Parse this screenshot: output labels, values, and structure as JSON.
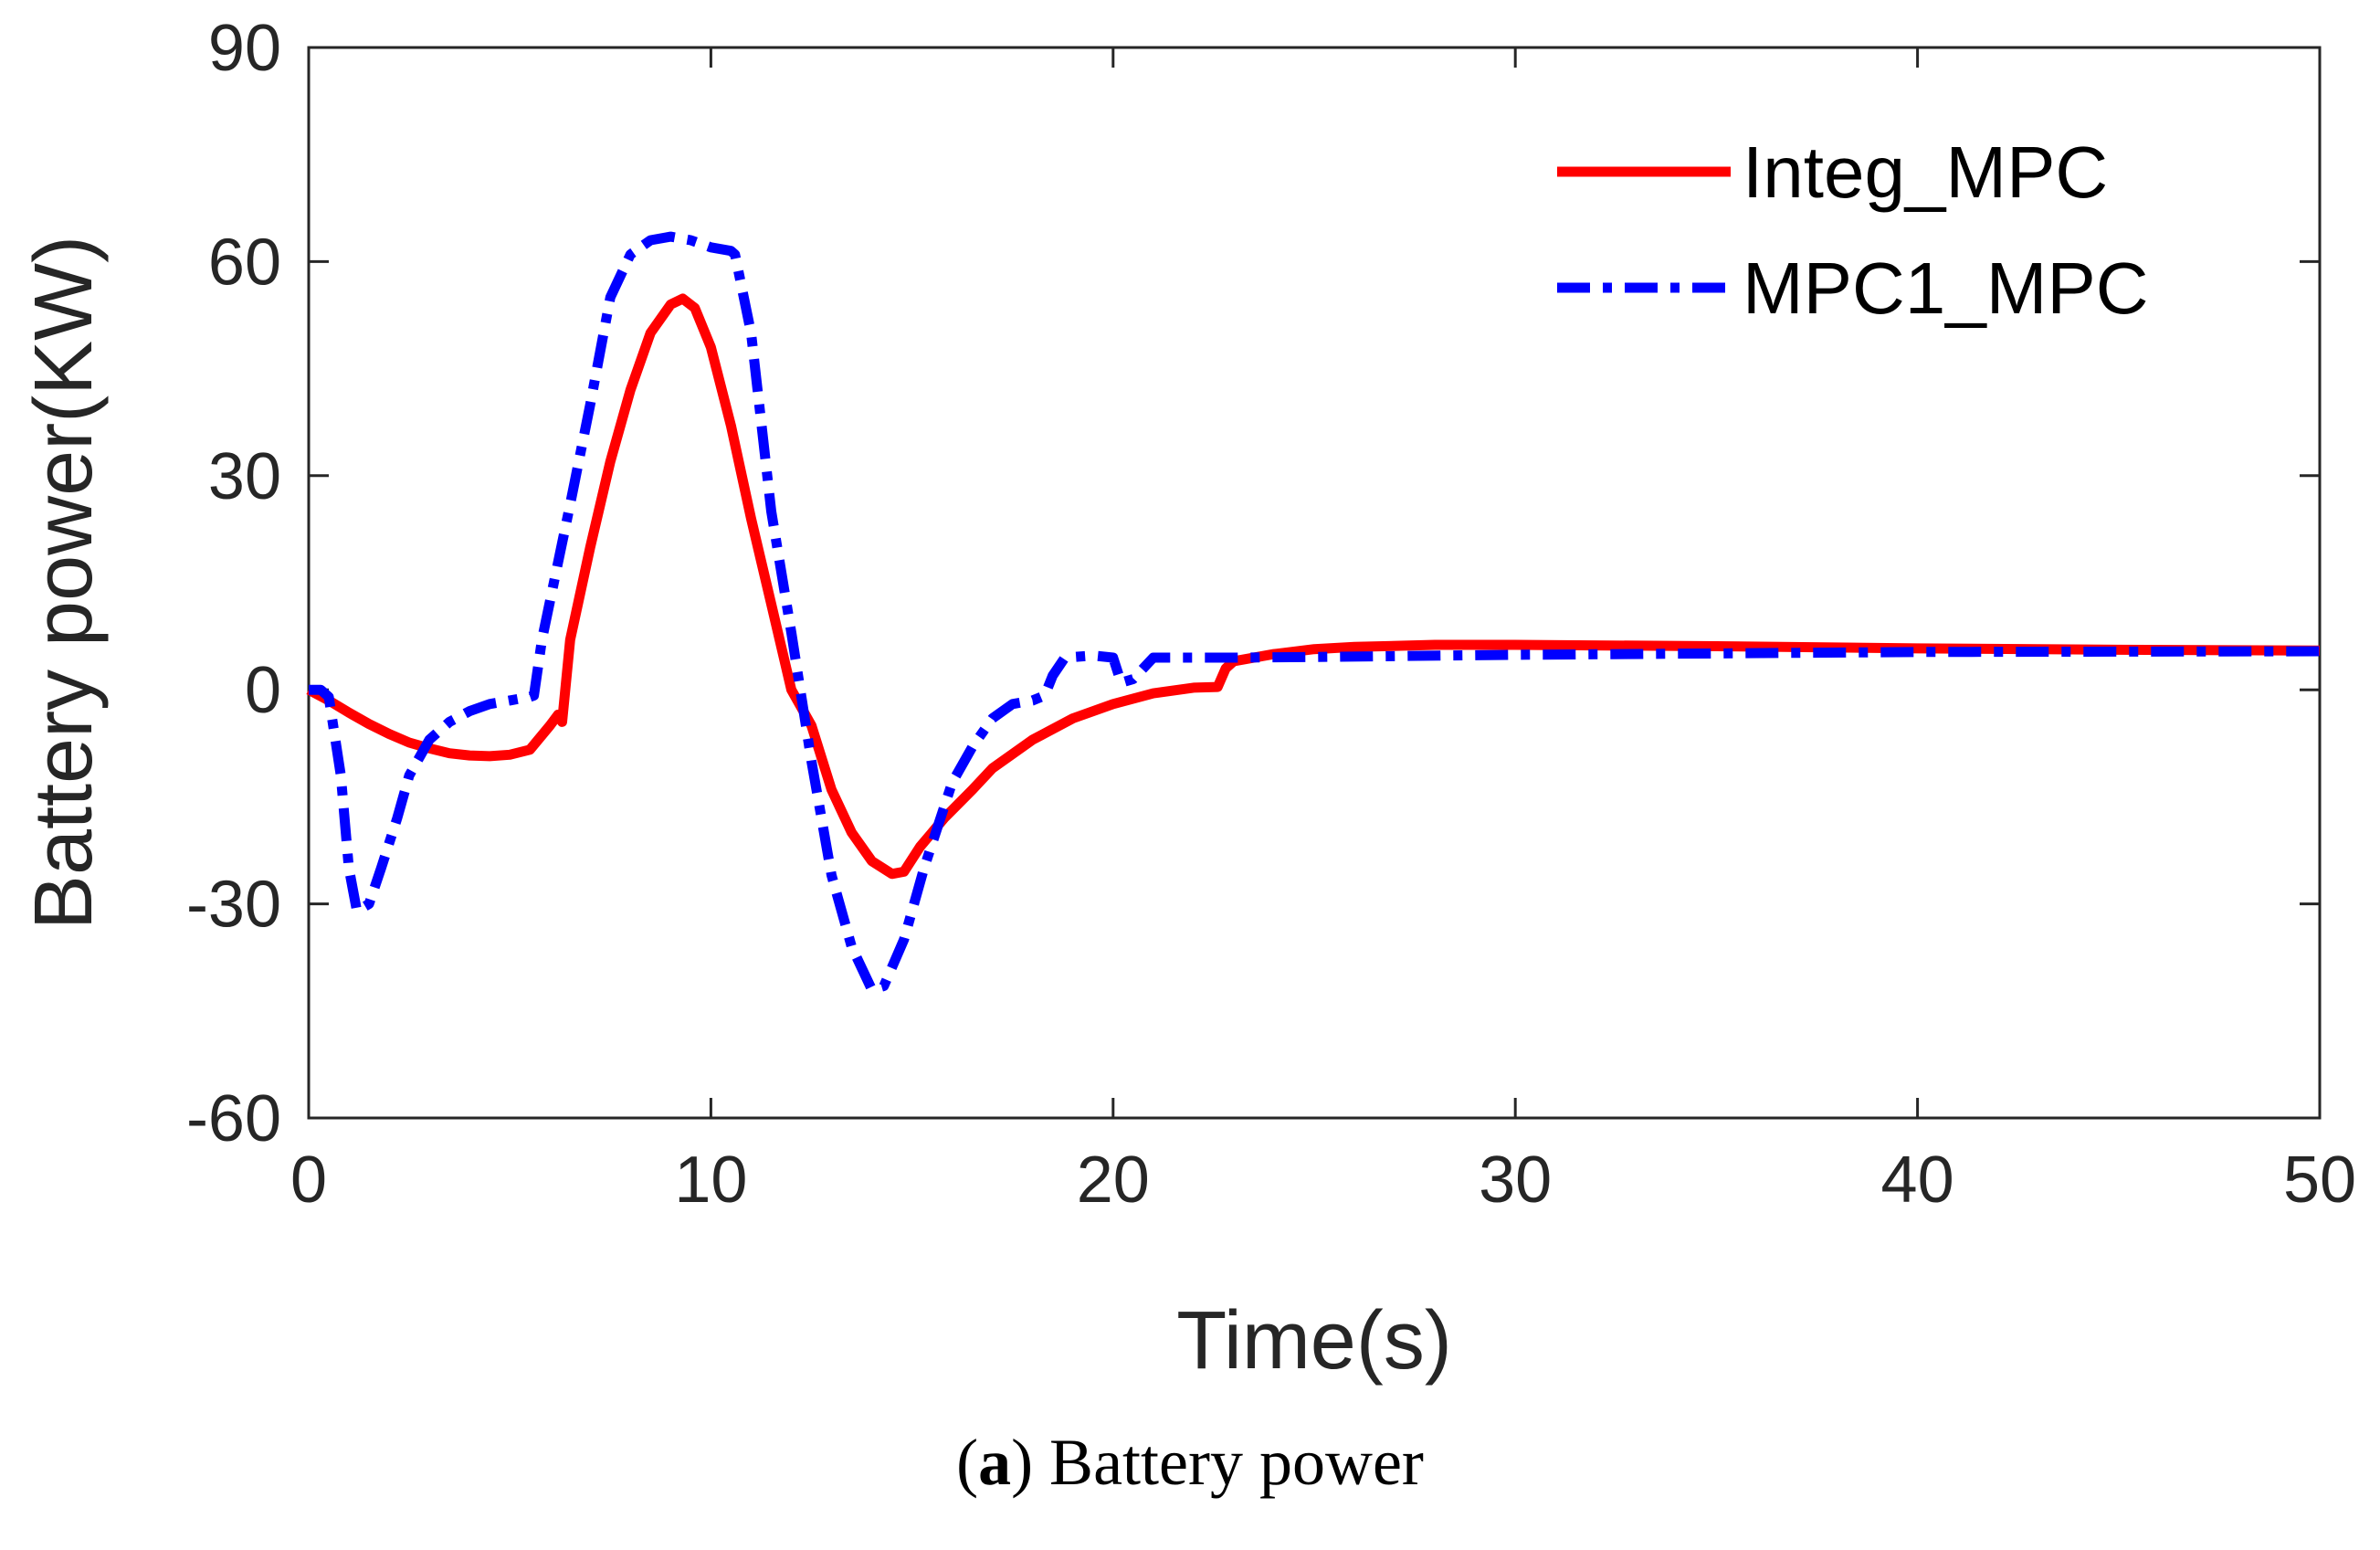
{
  "chart_data": {
    "type": "line",
    "xlabel": "Time(s)",
    "ylabel": "Battery power(KW)",
    "xlim": [
      0,
      50
    ],
    "ylim": [
      -60,
      90
    ],
    "xticks": [
      0,
      10,
      20,
      30,
      40,
      50
    ],
    "yticks": [
      -60,
      -30,
      0,
      30,
      60,
      90
    ],
    "legend_position": "top-right",
    "series": [
      {
        "name": "Integ_MPC",
        "color": "#ff0000",
        "style": "solid",
        "x": [
          0,
          0.5,
          1,
          1.5,
          2,
          2.5,
          3,
          3.5,
          4,
          4.5,
          5,
          5.5,
          6,
          6.2,
          6.3,
          6.5,
          7,
          7.5,
          8,
          8.5,
          9,
          9.3,
          9.6,
          10,
          10.5,
          11,
          11.5,
          12,
          12.5,
          13,
          13.5,
          14,
          14.5,
          14.8,
          15.2,
          15.8,
          16.5,
          17,
          18,
          19,
          20,
          21,
          22,
          22.6,
          22.8,
          23,
          24,
          25,
          26,
          28,
          30,
          35,
          40,
          45,
          50
        ],
        "y": [
          0,
          -1.5,
          -3.2,
          -4.8,
          -6.2,
          -7.4,
          -8.2,
          -8.9,
          -9.2,
          -9.3,
          -9.1,
          -8.4,
          -5,
          -3.5,
          -4.5,
          7,
          20,
          32,
          42,
          50,
          54,
          54.8,
          53.5,
          48,
          37,
          24,
          12,
          0,
          -5,
          -14,
          -20,
          -24,
          -25.8,
          -25.5,
          -22,
          -18,
          -14,
          -11,
          -7,
          -4,
          -2,
          -0.5,
          0.3,
          0.4,
          3,
          4,
          5,
          5.7,
          6,
          6.3,
          6.3,
          6.1,
          5.8,
          5.6,
          5.5
        ]
      },
      {
        "name": "MPC1_MPC",
        "color": "#0000ff",
        "style": "dashdot",
        "x": [
          0,
          0.3,
          0.5,
          0.8,
          1,
          1.2,
          1.5,
          1.8,
          2.2,
          2.5,
          3,
          3.5,
          4,
          4.5,
          5,
          5.5,
          5.6,
          5.8,
          6.5,
          7,
          7.5,
          8,
          8.5,
          9,
          9.5,
          10,
          10.5,
          10.6,
          11,
          11.3,
          11.5,
          12,
          12.5,
          13,
          13.5,
          14,
          14.3,
          14.8,
          15.3,
          16,
          16.5,
          17,
          17.5,
          18,
          18.3,
          18.5,
          18.8,
          19.5,
          20,
          20.2,
          20.5,
          21,
          22,
          23,
          25,
          30,
          35,
          40,
          50
        ],
        "y": [
          0,
          0,
          -1,
          -12,
          -25,
          -31,
          -30,
          -25,
          -18,
          -12,
          -7,
          -4.5,
          -3,
          -2,
          -1.5,
          -1,
          -0.8,
          7,
          26,
          40,
          55,
          61,
          63,
          63.5,
          63,
          62,
          61.5,
          61,
          50,
          35,
          25,
          8,
          -10,
          -26,
          -36,
          -42,
          -41.5,
          -35,
          -25,
          -13,
          -8,
          -4,
          -2,
          -1.5,
          -0.8,
          2,
          4.5,
          4.8,
          4.5,
          1,
          1.5,
          4.5,
          4.5,
          4.5,
          4.6,
          4.9,
          5.1,
          5.3,
          5.4
        ]
      }
    ]
  },
  "caption": {
    "label": "(a)",
    "label_letter": "a",
    "text": "Battery power"
  }
}
